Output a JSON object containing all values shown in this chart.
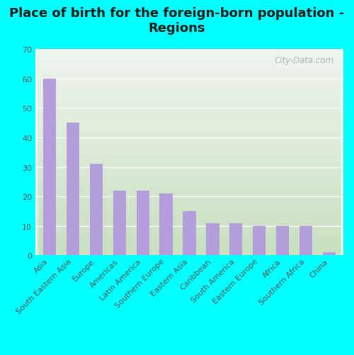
{
  "title": "Place of birth for the foreign-born population -\nRegions",
  "categories": [
    "Asia",
    "South Eastern Asia",
    "Europe",
    "Americas",
    "Latin America",
    "Southern Europe",
    "Eastern Asia",
    "Caribbean",
    "South America",
    "Eastern Europe",
    "Africa",
    "Southern Africa",
    "China"
  ],
  "values": [
    60,
    45,
    31,
    22,
    22,
    21,
    15,
    11,
    11,
    10,
    10,
    10,
    1
  ],
  "bar_color": "#b39ddb",
  "background_outer": "#00ffff",
  "background_inner_top": "#f0f5ee",
  "background_inner_bottom": "#c8dfc0",
  "ylim": [
    0,
    70
  ],
  "yticks": [
    0,
    10,
    20,
    30,
    40,
    50,
    60,
    70
  ],
  "grid_color": "#ffffff",
  "title_fontsize": 13,
  "tick_label_fontsize": 8,
  "ytick_label_fontsize": 8,
  "watermark": "City-Data.com",
  "title_color": "#1a1a1a",
  "tick_color": "#555555"
}
